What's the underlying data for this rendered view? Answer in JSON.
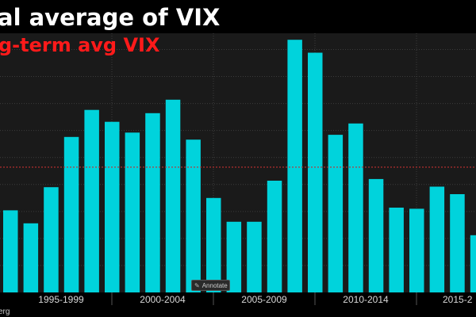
{
  "header": {
    "title": "al average of VIX",
    "subtitle": "g-term avg VIX"
  },
  "footer": {
    "source": "erg"
  },
  "annotate_button": {
    "label": "Annotate",
    "icon": "pencil-icon"
  },
  "colors": {
    "bars": "#00d3dc",
    "subtitle": "#ff1a1a",
    "long_term_avg_line": "#c03030",
    "background": "#1a1a1a"
  },
  "chart_data": {
    "type": "bar",
    "title": "al average of VIX",
    "xlabel": "",
    "ylabel": "",
    "x_tick_labels": [
      "1995-1999",
      "2000-2004",
      "2005-2009",
      "2010-2014",
      "2015-2"
    ],
    "values": [
      15.2,
      12.8,
      19.5,
      28.8,
      33.8,
      31.6,
      29.6,
      33.2,
      35.7,
      28.3,
      17.5,
      13.1,
      13.1,
      20.7,
      46.8,
      44.4,
      29.2,
      31.3,
      21.0,
      15.7,
      15.5,
      19.6,
      18.2,
      10.6
    ],
    "long_term_average": 23.2,
    "ylim": [
      0,
      48
    ],
    "grid": true,
    "legend": "none"
  }
}
